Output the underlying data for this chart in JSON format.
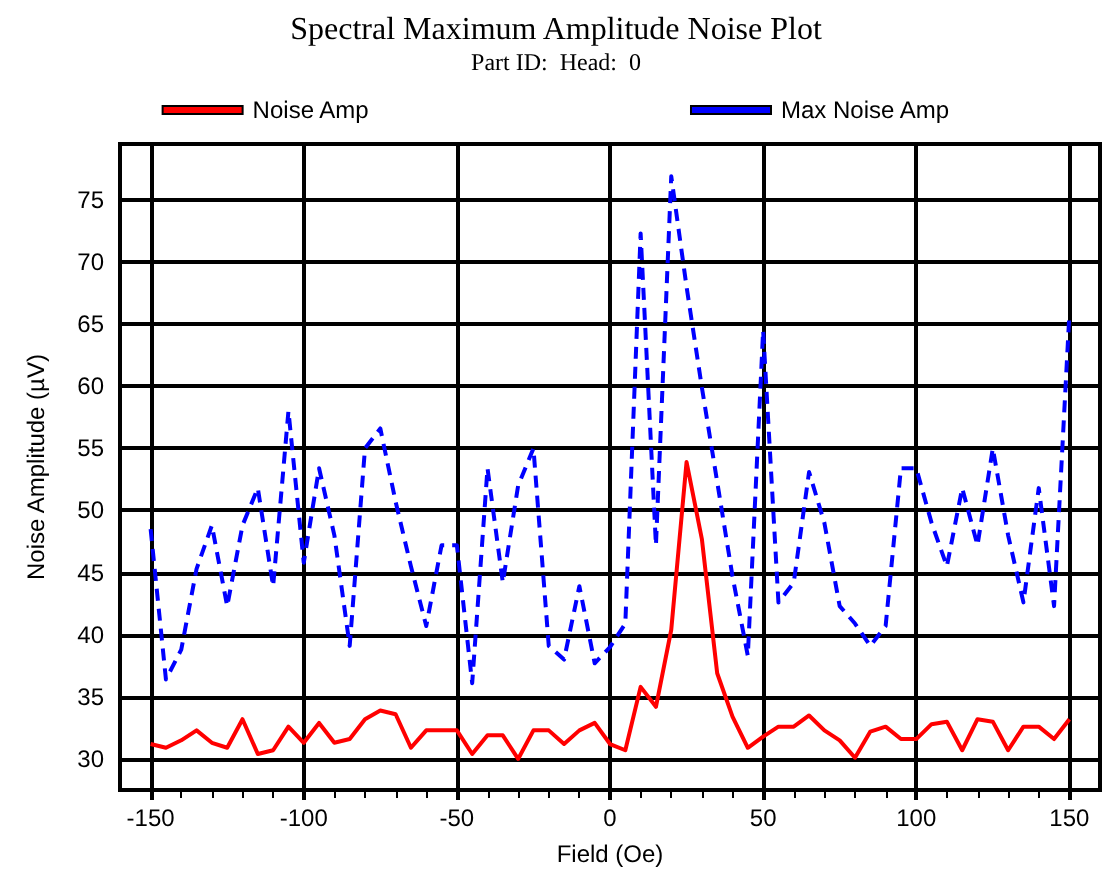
{
  "chart_data": {
    "type": "line",
    "title": "Spectral Maximum Amplitude Noise Plot",
    "subtitle": "Part ID:  Head:  0",
    "xlabel": "Field (Oe)",
    "ylabel": "Noise Amplitude (µV)",
    "x": [
      -150,
      -145,
      -140,
      -135,
      -130,
      -125,
      -120,
      -115,
      -110,
      -105,
      -100,
      -95,
      -90,
      -85,
      -80,
      -75,
      -70,
      -65,
      -60,
      -55,
      -50,
      -45,
      -40,
      -35,
      -30,
      -25,
      -20,
      -15,
      -10,
      -5,
      0,
      5,
      10,
      15,
      20,
      25,
      30,
      35,
      40,
      45,
      50,
      55,
      60,
      65,
      70,
      75,
      80,
      85,
      90,
      95,
      100,
      105,
      110,
      115,
      120,
      125,
      130,
      135,
      140,
      145,
      150
    ],
    "series": [
      {
        "name": "Noise Amp",
        "color": "#ff0000",
        "line_style": "solid",
        "values": [
          31.2,
          30.9,
          31.5,
          32.3,
          31.3,
          30.9,
          33.2,
          30.4,
          30.7,
          32.6,
          31.3,
          32.9,
          31.3,
          31.6,
          33.2,
          33.9,
          33.6,
          30.9,
          32.3,
          32.3,
          32.3,
          30.4,
          31.9,
          31.9,
          30.0,
          32.3,
          32.3,
          31.2,
          32.3,
          32.9,
          31.2,
          30.7,
          35.8,
          34.2,
          40.4,
          53.9,
          47.7,
          36.9,
          33.4,
          30.9,
          31.8,
          32.6,
          32.6,
          33.5,
          32.3,
          31.5,
          30.1,
          32.2,
          32.6,
          31.6,
          31.6,
          32.8,
          33.0,
          30.7,
          33.2,
          33.0,
          30.7,
          32.6,
          32.6,
          31.6,
          33.2
        ]
      },
      {
        "name": "Max Noise Amp",
        "color": "#0000ff",
        "line_style": "dashed",
        "values": [
          48.5,
          36.4,
          38.8,
          45.3,
          48.8,
          42.3,
          48.8,
          51.8,
          43.9,
          58.0,
          45.8,
          53.4,
          48.0,
          39.1,
          55.0,
          56.6,
          50.7,
          45.5,
          40.7,
          47.2,
          47.2,
          36.1,
          53.4,
          44.2,
          52.0,
          55.0,
          39.1,
          38.0,
          43.9,
          37.7,
          39.0,
          40.9,
          72.3,
          47.2,
          76.9,
          68.0,
          59.9,
          52.3,
          44.7,
          38.3,
          64.5,
          42.6,
          44.2,
          53.1,
          49.0,
          42.3,
          40.9,
          39.1,
          40.7,
          53.4,
          53.4,
          49.0,
          45.5,
          51.8,
          47.2,
          55.0,
          48.0,
          42.6,
          51.8,
          42.3,
          65.8
        ]
      }
    ],
    "xlim": [
      -160,
      160
    ],
    "xticks": [
      -150,
      -100,
      -50,
      0,
      50,
      100,
      150
    ],
    "ylim": [
      27.5,
      79.5
    ],
    "yticks": [
      30,
      35,
      40,
      45,
      50,
      55,
      60,
      65,
      70,
      75
    ],
    "grid": true,
    "legend": "top",
    "marker": "none"
  }
}
